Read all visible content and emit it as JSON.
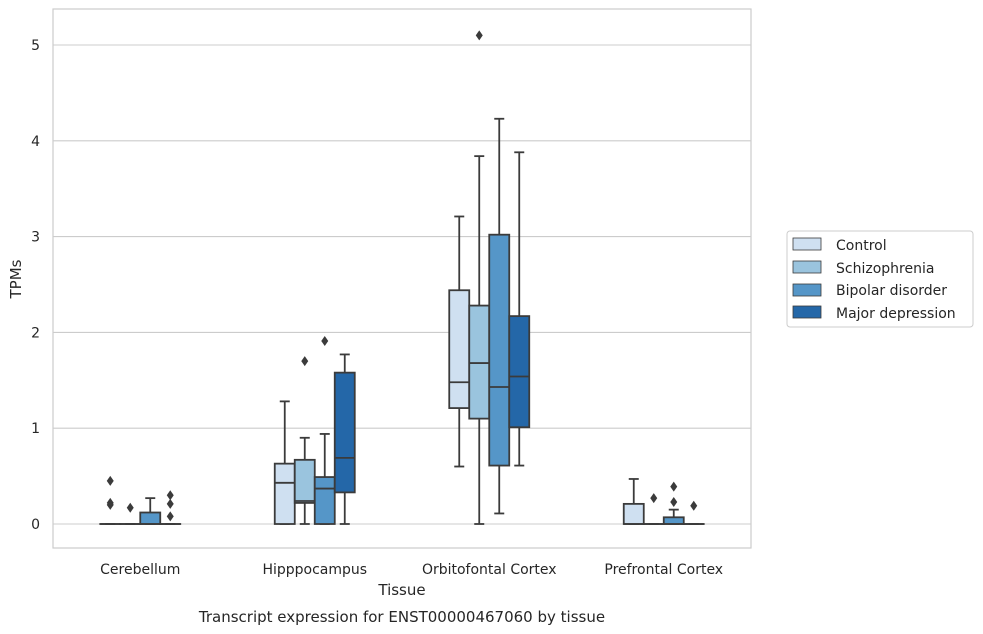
{
  "chart_data": {
    "type": "box",
    "caption": "Transcript expression for ENST00000467060 by tissue",
    "xlabel": "Tissue",
    "ylabel": "TPMs",
    "ylim": [
      -0.25,
      5.38
    ],
    "yticks": [
      0,
      1,
      2,
      3,
      4,
      5
    ],
    "grid": true,
    "legend_position": "right",
    "categories": [
      "Cerebellum",
      "Hipppocampus",
      "Orbitofontal Cortex",
      "Prefrontal Cortex"
    ],
    "series": [
      {
        "name": "Control",
        "color": "#cfe0f1",
        "boxes": [
          {
            "whisker_low": 0,
            "q1": 0,
            "median": 0,
            "q3": 0,
            "whisker_high": 0,
            "outliers": [
              0.45,
              0.22,
              0.2
            ]
          },
          {
            "whisker_low": 0,
            "q1": 0,
            "median": 0.43,
            "q3": 0.63,
            "whisker_high": 1.28,
            "outliers": []
          },
          {
            "whisker_low": 0.6,
            "q1": 1.21,
            "median": 1.48,
            "q3": 2.44,
            "whisker_high": 3.21,
            "outliers": []
          },
          {
            "whisker_low": 0,
            "q1": 0,
            "median": 0,
            "q3": 0.21,
            "whisker_high": 0.47,
            "outliers": []
          }
        ]
      },
      {
        "name": "Schizophrenia",
        "color": "#9ac4de",
        "boxes": [
          {
            "whisker_low": 0,
            "q1": 0,
            "median": 0,
            "q3": 0,
            "whisker_high": 0,
            "outliers": [
              0.17
            ]
          },
          {
            "whisker_low": 0,
            "q1": 0.22,
            "median": 0.24,
            "q3": 0.67,
            "whisker_high": 0.9,
            "outliers": [
              1.7
            ]
          },
          {
            "whisker_low": 0,
            "q1": 1.1,
            "median": 1.68,
            "q3": 2.28,
            "whisker_high": 3.84,
            "outliers": [
              5.1
            ]
          },
          {
            "whisker_low": 0,
            "q1": 0,
            "median": 0,
            "q3": 0,
            "whisker_high": 0,
            "outliers": [
              0.27
            ]
          }
        ]
      },
      {
        "name": "Bipolar disorder",
        "color": "#5596c8",
        "boxes": [
          {
            "whisker_low": 0,
            "q1": 0,
            "median": 0,
            "q3": 0.12,
            "whisker_high": 0.27,
            "outliers": []
          },
          {
            "whisker_low": 0,
            "q1": 0,
            "median": 0.37,
            "q3": 0.49,
            "whisker_high": 0.94,
            "outliers": [
              1.91
            ]
          },
          {
            "whisker_low": 0.11,
            "q1": 0.61,
            "median": 1.43,
            "q3": 3.02,
            "whisker_high": 4.23,
            "outliers": []
          },
          {
            "whisker_low": 0,
            "q1": 0,
            "median": 0,
            "q3": 0.07,
            "whisker_high": 0.15,
            "outliers": [
              0.39,
              0.23
            ]
          }
        ]
      },
      {
        "name": "Major depression",
        "color": "#2467a8",
        "boxes": [
          {
            "whisker_low": 0,
            "q1": 0,
            "median": 0,
            "q3": 0,
            "whisker_high": 0,
            "outliers": [
              0.3,
              0.21,
              0.08
            ]
          },
          {
            "whisker_low": 0,
            "q1": 0.33,
            "median": 0.69,
            "q3": 1.58,
            "whisker_high": 1.77,
            "outliers": []
          },
          {
            "whisker_low": 0.61,
            "q1": 1.01,
            "median": 1.54,
            "q3": 2.17,
            "whisker_high": 3.88,
            "outliers": []
          },
          {
            "whisker_low": 0,
            "q1": 0,
            "median": 0,
            "q3": 0,
            "whisker_high": 0,
            "outliers": [
              0.19
            ]
          }
        ]
      }
    ],
    "colors": {
      "frame": "#cccccc",
      "grid": "#cccccc",
      "box_line": "#3b3b3b"
    }
  }
}
